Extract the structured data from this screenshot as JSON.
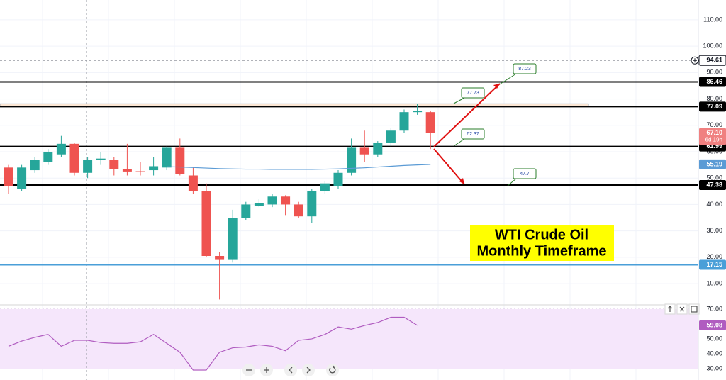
{
  "chart_data": {
    "type": "candlestick",
    "title": [
      "WTI Crude Oil",
      "Monthly Timeframe"
    ],
    "up_color": "#26a69a",
    "down_color": "#ef5350",
    "candles": [
      {
        "o": 54,
        "h": 55,
        "l": 44,
        "c": 47
      },
      {
        "o": 46,
        "h": 55,
        "l": 45,
        "c": 54
      },
      {
        "o": 53,
        "h": 58,
        "l": 52,
        "c": 57
      },
      {
        "o": 56,
        "h": 61,
        "l": 55,
        "c": 60
      },
      {
        "o": 59,
        "h": 66,
        "l": 58,
        "c": 63
      },
      {
        "o": 63,
        "h": 63.5,
        "l": 51,
        "c": 52
      },
      {
        "o": 52,
        "h": 58,
        "l": 50,
        "c": 57
      },
      {
        "o": 57,
        "h": 60,
        "l": 55,
        "c": 57.4
      },
      {
        "o": 57,
        "h": 58,
        "l": 51,
        "c": 53.5
      },
      {
        "o": 53.5,
        "h": 63,
        "l": 51,
        "c": 52.5
      },
      {
        "o": 52.6,
        "h": 56,
        "l": 51,
        "c": 52.4
      },
      {
        "o": 53,
        "h": 58,
        "l": 51,
        "c": 54.5
      },
      {
        "o": 54,
        "h": 62,
        "l": 53,
        "c": 61.5
      },
      {
        "o": 61.5,
        "h": 65,
        "l": 51,
        "c": 51.5
      },
      {
        "o": 51,
        "h": 54,
        "l": 44,
        "c": 45
      },
      {
        "o": 45,
        "h": 48,
        "l": 20,
        "c": 20.5
      },
      {
        "o": 20.5,
        "h": 22,
        "l": 4,
        "c": 19
      },
      {
        "o": 19,
        "h": 38,
        "l": 18,
        "c": 35
      },
      {
        "o": 35,
        "h": 41,
        "l": 34,
        "c": 40
      },
      {
        "o": 39.5,
        "h": 42,
        "l": 39,
        "c": 40.5
      },
      {
        "o": 40,
        "h": 44,
        "l": 39,
        "c": 43
      },
      {
        "o": 43,
        "h": 43.5,
        "l": 36,
        "c": 40
      },
      {
        "o": 40,
        "h": 41,
        "l": 35,
        "c": 35.5
      },
      {
        "o": 35.5,
        "h": 46,
        "l": 33,
        "c": 45
      },
      {
        "o": 45,
        "h": 49,
        "l": 44,
        "c": 48
      },
      {
        "o": 47,
        "h": 53,
        "l": 46,
        "c": 52
      },
      {
        "o": 52,
        "h": 65,
        "l": 51,
        "c": 61.5
      },
      {
        "o": 61.5,
        "h": 68,
        "l": 56,
        "c": 59
      },
      {
        "o": 59,
        "h": 64,
        "l": 58,
        "c": 63.5
      },
      {
        "o": 63.5,
        "h": 69,
        "l": 62,
        "c": 68
      },
      {
        "o": 68,
        "h": 76,
        "l": 67,
        "c": 75
      },
      {
        "o": 75,
        "h": 78,
        "l": 74,
        "c": 75.5
      },
      {
        "o": 75,
        "h": 75.5,
        "l": 61,
        "c": 67.1
      }
    ],
    "moving_average": {
      "color": "#5b9bd5",
      "values": [
        null,
        null,
        null,
        null,
        null,
        null,
        null,
        null,
        null,
        null,
        null,
        null,
        54.3,
        54.2,
        54.0,
        53.8,
        53.6,
        53.5,
        53.4,
        53.4,
        53.3,
        53.3,
        53.3,
        53.3,
        53.4,
        53.5,
        53.7,
        53.9,
        54.2,
        54.5,
        54.8,
        55.0,
        55.19
      ]
    },
    "ylim": [
      2.5,
      117.5
    ],
    "yticks": [
      {
        "value": 10,
        "label": "10.00"
      },
      {
        "value": 20,
        "label": "20.00"
      },
      {
        "value": 30,
        "label": "30.00"
      },
      {
        "value": 40,
        "label": "40.00"
      },
      {
        "value": 50,
        "label": "50.00"
      },
      {
        "value": 60,
        "label": "60.00"
      },
      {
        "value": 70,
        "label": "70.00"
      },
      {
        "value": 80,
        "label": "80.00"
      },
      {
        "value": 90,
        "label": "90.00"
      },
      {
        "value": 100,
        "label": "100.00"
      },
      {
        "value": 110,
        "label": "110.00"
      }
    ],
    "grid": true,
    "levels": [
      {
        "value": 86.46,
        "color": "#000000"
      },
      {
        "value": 77.09,
        "color": "#000000"
      },
      {
        "value": 61.99,
        "color": "#000000"
      },
      {
        "value": 47.38,
        "color": "#000000"
      },
      {
        "value": 17.15,
        "color": "#4a9fd8"
      }
    ],
    "zone": {
      "from": 77.09,
      "to": 78.2,
      "color": "#fbe6d4"
    },
    "price_labels": [
      {
        "value": 94.61,
        "color": "#ffffff"
      },
      {
        "value": {
          "value": 67.1,
          "label": "67.10"
        },
        "color": "#f08080",
        "countdown": "6d 19h"
      },
      {
        "value": 55.19,
        "color": "#5b9bd5"
      }
    ],
    "annotations": [
      87.23,
      77.73,
      62.37,
      47.7
    ],
    "rsi": {
      "color": "#b05cc0",
      "values": [
        45,
        48.5,
        51,
        53,
        45,
        49,
        49,
        47.5,
        47,
        47,
        48,
        53,
        47,
        41,
        29,
        29,
        41,
        44,
        44.5,
        46,
        45,
        42,
        49,
        50,
        53,
        58,
        56.5,
        59,
        61,
        64.5,
        64.5,
        59.08
      ],
      "value_labels": [
        null,
        null,
        null,
        null,
        null,
        null,
        null,
        null,
        null,
        null,
        null,
        null,
        null,
        null,
        null,
        null,
        null,
        null,
        null,
        null,
        null,
        null,
        null,
        null,
        null,
        null,
        null,
        null,
        null,
        null,
        null,
        "59.08"
      ],
      "ylim": [
        25.2,
        71.9
      ],
      "yticks": [
        {
          "value": 30,
          "label": "30.00"
        },
        {
          "value": 40,
          "label": "40.00"
        },
        {
          "value": 50,
          "label": "50.00"
        },
        {
          "value": 70,
          "label": "70.00"
        }
      ]
    }
  }
}
